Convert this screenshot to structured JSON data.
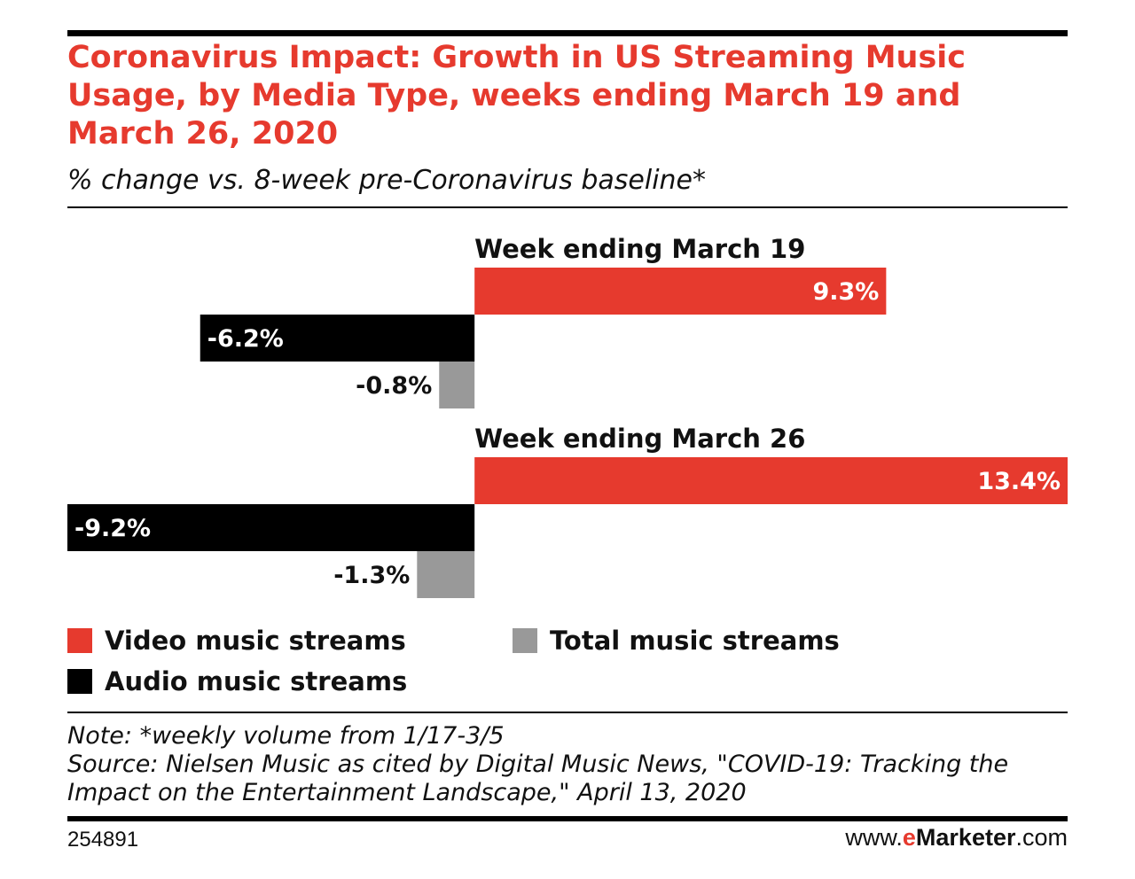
{
  "title": "Coronavirus Impact: Growth in US Streaming Music Usage, by Media Type, weeks ending March 19 and March 26, 2020",
  "subtitle": "% change vs. 8-week pre-Coronavirus baseline*",
  "note": "Note: *weekly volume from 1/17-3/5",
  "source": "Source: Nielsen Music as cited by Digital Music News, \"COVID-19: Tracking the Impact on the Entertainment Landscape,\" April 13, 2020",
  "chart_id": "254891",
  "brand": {
    "prefix": "www.",
    "e": "e",
    "name": "Marketer",
    "suffix": ".com"
  },
  "colors": {
    "video": "#e63a2e",
    "audio": "#000000",
    "total": "#999999",
    "title": "#e63a2e"
  },
  "legend": [
    {
      "label": "Video music streams",
      "color": "#e63a2e"
    },
    {
      "label": "Total music streams",
      "color": "#999999"
    },
    {
      "label": "Audio music streams",
      "color": "#000000"
    }
  ],
  "chart_data": {
    "type": "bar",
    "orientation": "horizontal",
    "unit": "%",
    "xlim": [
      -9.2,
      13.4
    ],
    "grid": false,
    "legend_position": "bottom",
    "groups": [
      {
        "label": "Week ending March 19",
        "bars": [
          {
            "series": "Video music streams",
            "value": 9.3,
            "label": "9.3%"
          },
          {
            "series": "Audio music streams",
            "value": -6.2,
            "label": "-6.2%"
          },
          {
            "series": "Total music streams",
            "value": -0.8,
            "label": "-0.8%"
          }
        ]
      },
      {
        "label": "Week ending March 26",
        "bars": [
          {
            "series": "Video music streams",
            "value": 13.4,
            "label": "13.4%"
          },
          {
            "series": "Audio music streams",
            "value": -9.2,
            "label": "-9.2%"
          },
          {
            "series": "Total music streams",
            "value": -1.3,
            "label": "-1.3%"
          }
        ]
      }
    ]
  }
}
